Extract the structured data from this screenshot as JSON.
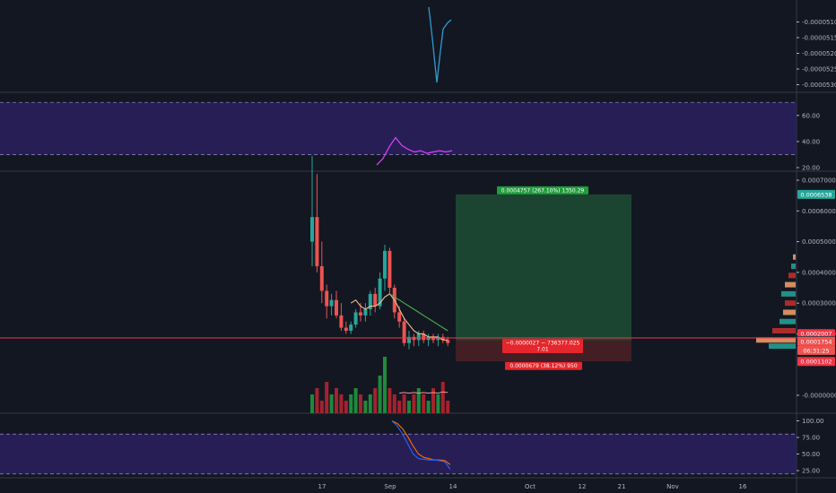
{
  "theme": {
    "background": "#131722",
    "separator": "#363a45",
    "text": "#b2b5be",
    "up": "#26a69a",
    "down": "#ef5350",
    "rsi_band": "#2a1f5c",
    "rsi_line": "#e040fb",
    "profit_zone": "#1d4a33",
    "loss_zone": "#4a1f26",
    "entry_line": "#f23645"
  },
  "chart_data": [
    {
      "type": "line",
      "pane": "oscillator-top",
      "y_ticks": [
        "-0.0000510",
        "-0.0000515",
        "-0.0000520",
        "-0.0000525",
        "-0.0000530"
      ],
      "ylim": [
        -5.31e-05,
        -5.07e-05
      ],
      "x": [
        0,
        1,
        2,
        3,
        4,
        5,
        6
      ],
      "values": [
        -5.07e-05,
        -5.17e-05,
        -5.31e-05,
        -5.21e-05,
        -5.14e-05,
        -5.12e-05,
        -5.11e-05
      ],
      "color": "#2e9ad0"
    },
    {
      "type": "line",
      "pane": "rsi",
      "y_ticks": [
        "60.00",
        "40.00",
        "20.00"
      ],
      "ylim": [
        18,
        78
      ],
      "band": [
        30,
        70
      ],
      "x": [
        0,
        1,
        2,
        3,
        4,
        5,
        6,
        7,
        8,
        9,
        10,
        11,
        12
      ],
      "values": [
        22,
        27,
        36,
        43,
        37,
        34,
        32,
        33,
        31,
        32,
        33,
        32,
        33
      ],
      "color": "#e040fb"
    },
    {
      "type": "candlestick",
      "pane": "price",
      "x_ticks": [
        "17",
        "Sep",
        "14",
        "Oct",
        "12",
        "21",
        "Nov",
        "16"
      ],
      "y_ticks": [
        "0.0007000",
        "0.0006000",
        "0.0005000",
        "0.0004000",
        "0.0003000",
        "0.0002000",
        "-0.0000000"
      ],
      "ylim": [
        -4e-05,
        0.00072
      ],
      "candles": [
        [
          0.0005,
          0.00078,
          0.00042,
          0.00058
        ],
        [
          0.00058,
          0.00072,
          0.0004,
          0.00042
        ],
        [
          0.00042,
          0.0005,
          0.0003,
          0.00034
        ],
        [
          0.00034,
          0.00036,
          0.00025,
          0.00029
        ],
        [
          0.00029,
          0.00033,
          0.00026,
          0.00031
        ],
        [
          0.00031,
          0.00034,
          0.00025,
          0.00026
        ],
        [
          0.00026,
          0.0003,
          0.00021,
          0.00022
        ],
        [
          0.00022,
          0.00024,
          0.0002,
          0.00021
        ],
        [
          0.00021,
          0.00024,
          0.0002,
          0.00023
        ],
        [
          0.00023,
          0.00028,
          0.00022,
          0.00027
        ],
        [
          0.00027,
          0.0003,
          0.00024,
          0.00026
        ],
        [
          0.00026,
          0.0003,
          0.00024,
          0.00028
        ],
        [
          0.00028,
          0.00034,
          0.00026,
          0.00033
        ],
        [
          0.00033,
          0.00035,
          0.00027,
          0.00029
        ],
        [
          0.00029,
          0.0004,
          0.00028,
          0.00038
        ],
        [
          0.00038,
          0.00049,
          0.00034,
          0.00047
        ],
        [
          0.00047,
          0.00048,
          0.00033,
          0.00035
        ],
        [
          0.00035,
          0.00036,
          0.00025,
          0.00027
        ],
        [
          0.00027,
          0.00029,
          0.00022,
          0.00024
        ],
        [
          0.00024,
          0.00025,
          0.00016,
          0.00017
        ],
        [
          0.00017,
          0.00021,
          0.00015,
          0.00019
        ],
        [
          0.00019,
          0.0002,
          0.00016,
          0.00018
        ],
        [
          0.00018,
          0.00021,
          0.00016,
          0.0002
        ],
        [
          0.0002,
          0.00021,
          0.00017,
          0.00018
        ],
        [
          0.00018,
          0.0002,
          0.00016,
          0.00019
        ],
        [
          0.00019,
          0.0002,
          0.00017,
          0.00018
        ],
        [
          0.00018,
          0.0002,
          0.00016,
          0.00019
        ],
        [
          0.00019,
          0.0002,
          0.00017,
          0.00018
        ],
        [
          0.00018,
          0.00019,
          0.00016,
          0.00017
        ]
      ],
      "ma_fast": [
        null,
        null,
        null,
        null,
        null,
        null,
        null,
        null,
        0.0003,
        0.00031,
        0.00029,
        0.00028,
        0.00029,
        0.00029,
        0.0003,
        0.00032,
        0.00033,
        0.00031,
        0.00028,
        0.00025,
        0.00023,
        0.00021,
        0.0002,
        0.0002,
        0.00019,
        0.00019,
        0.00019,
        0.00018,
        0.00018
      ],
      "ma_slow": [
        null,
        null,
        null,
        null,
        null,
        null,
        null,
        null,
        null,
        null,
        null,
        null,
        null,
        null,
        null,
        null,
        0.00033,
        0.00032,
        0.00031,
        0.0003,
        0.00029,
        0.00028,
        0.00027,
        0.00026,
        0.00025,
        0.00024,
        0.00023,
        0.00022,
        0.00021
      ],
      "volume": [
        3,
        4,
        2,
        5,
        3,
        4,
        3,
        2,
        3,
        4,
        3,
        2,
        3,
        4,
        6,
        9,
        4,
        3,
        2,
        3,
        2,
        3,
        4,
        3,
        2,
        4,
        3,
        5,
        2
      ],
      "volume_ma": [
        null,
        null,
        null,
        null,
        null,
        null,
        null,
        null,
        null,
        null,
        null,
        null,
        null,
        null,
        null,
        null,
        null,
        null,
        3.2,
        3.3,
        3.2,
        3.3,
        3.2,
        3.3,
        3.2,
        3.3,
        3.2,
        3.4,
        3.3
      ],
      "position": {
        "entry": 0.0001781,
        "target": 0.0006538,
        "stop": 0.0001102,
        "target_label": "0.0004757 (267.10%) 1350.29",
        "stop_label": "0.0000679 (38.12%) 950",
        "status_label_1": "−0.0000027 ∼ 736377.025",
        "status_label_2": "7.01"
      },
      "profile_rows": [
        0.00045,
        0.00042,
        0.00039,
        0.00036,
        0.00033,
        0.0003,
        0.00027,
        0.00024,
        0.00021,
        0.00018,
        0.00016
      ],
      "profile_widths": [
        3,
        5,
        8,
        12,
        16,
        12,
        14,
        18,
        26,
        44,
        30
      ],
      "price_labels": [
        {
          "price": 0.0006538,
          "text": "0.0006538",
          "color": "#26a69a"
        },
        {
          "price": 0.0002007,
          "text": "0.0002007",
          "color": "#f23645"
        },
        {
          "price": 0.0001781,
          "text": "0.0001781",
          "color": "#363a45"
        },
        {
          "price": 0.0001754,
          "text": "0.0001754",
          "color": "#ef5350"
        },
        {
          "price": 0.0001102,
          "text": "0.0001102",
          "color": "#f23645"
        }
      ],
      "countdown": "06:31:25"
    },
    {
      "type": "line",
      "pane": "stochastic",
      "y_ticks": [
        "100.00",
        "75.00",
        "50.00",
        "25.00"
      ],
      "ylim": [
        20,
        104
      ],
      "band": [
        20,
        80
      ],
      "x": [
        0,
        1,
        2,
        3,
        4,
        5,
        6,
        7,
        8,
        9,
        10,
        11
      ],
      "k": [
        100,
        92,
        80,
        65,
        50,
        43,
        42,
        41,
        41,
        40,
        38,
        27
      ],
      "d": [
        100,
        96,
        88,
        76,
        62,
        50,
        45,
        43,
        41,
        41,
        40,
        34
      ],
      "k_color": "#2962ff",
      "d_color": "#ff6d00"
    }
  ]
}
